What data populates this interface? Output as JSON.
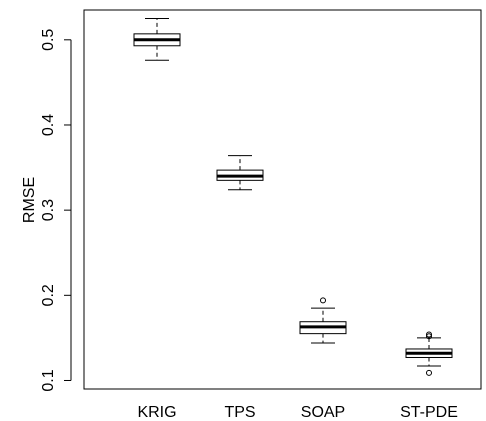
{
  "chart_data": {
    "type": "boxplot",
    "title": "",
    "xlabel": "",
    "ylabel": "RMSE",
    "ylim": [
      0.09,
      0.535
    ],
    "yticks": [
      0.1,
      0.2,
      0.3,
      0.4,
      0.5
    ],
    "ytick_labels": [
      "0.1",
      "0.2",
      "0.3",
      "0.4",
      "0.5"
    ],
    "grid": false,
    "categories": [
      "KRIG",
      "TPS",
      "SOAP",
      "ST-PDE"
    ],
    "boxes": [
      {
        "category": "KRIG",
        "whisker_low": 0.476,
        "q1": 0.493,
        "median": 0.5,
        "q3": 0.507,
        "whisker_high": 0.525,
        "outliers": []
      },
      {
        "category": "TPS",
        "whisker_low": 0.324,
        "q1": 0.335,
        "median": 0.34,
        "q3": 0.347,
        "whisker_high": 0.364,
        "outliers": []
      },
      {
        "category": "SOAP",
        "whisker_low": 0.144,
        "q1": 0.155,
        "median": 0.163,
        "q3": 0.169,
        "whisker_high": 0.185,
        "outliers": [
          0.194
        ]
      },
      {
        "category": "ST-PDE",
        "whisker_low": 0.117,
        "q1": 0.127,
        "median": 0.132,
        "q3": 0.137,
        "whisker_high": 0.15,
        "outliers": [
          0.154,
          0.152,
          0.109
        ]
      }
    ]
  }
}
